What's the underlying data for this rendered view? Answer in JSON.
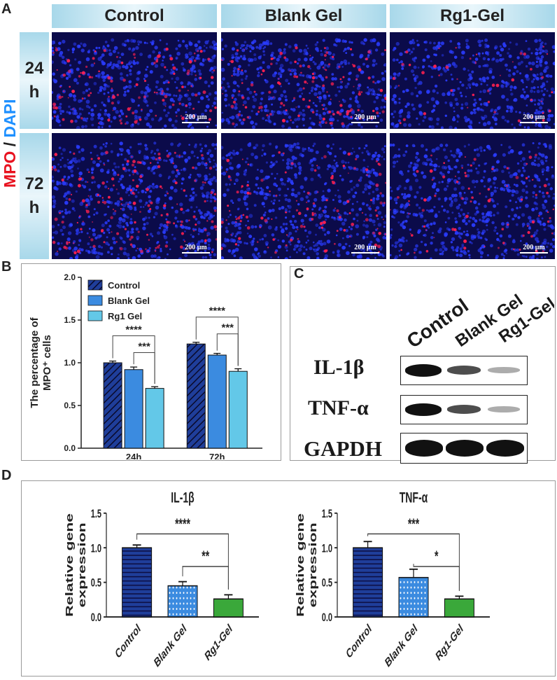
{
  "panel_labels": {
    "a": "A",
    "b": "B",
    "c": "C",
    "d": "D"
  },
  "panel_a": {
    "columns": [
      "Control",
      "Blank Gel",
      "Rg1-Gel"
    ],
    "rows": [
      {
        "line1": "24",
        "line2": "h"
      },
      {
        "line1": "72",
        "line2": "h"
      }
    ],
    "stain_label": {
      "mpo": "MPO",
      "sep": " / ",
      "dapi": "DAPI"
    },
    "scale_bar": "200 μm",
    "colors": {
      "dapi": "#2a3cff",
      "mpo": "#ff2050",
      "background": "#0b0b4a"
    }
  },
  "panel_c": {
    "lanes": [
      "Control",
      "Blank Gel",
      "Rg1-Gel"
    ],
    "rows": [
      {
        "label": "IL-1β",
        "intensity": [
          1.0,
          0.6,
          0.3
        ]
      },
      {
        "label": "TNF-α",
        "intensity": [
          1.0,
          0.6,
          0.3
        ]
      },
      {
        "label": "GAPDH",
        "intensity": [
          1.0,
          1.0,
          1.0
        ]
      }
    ]
  },
  "chart_data": [
    {
      "panel": "B",
      "type": "bar",
      "categories": [
        "24h",
        "72h"
      ],
      "series": [
        {
          "name": "Control",
          "values": [
            1.0,
            1.22
          ],
          "errors": [
            0.02,
            0.02
          ],
          "color": "#1f3e9a",
          "pattern": "diagonal-hatch"
        },
        {
          "name": "Blank Gel",
          "values": [
            0.92,
            1.09
          ],
          "errors": [
            0.03,
            0.02
          ],
          "color": "#3b8be0",
          "pattern": "solid"
        },
        {
          "name": "Rg1 Gel",
          "values": [
            0.7,
            0.9
          ],
          "errors": [
            0.02,
            0.03
          ],
          "color": "#63c8e8",
          "pattern": "solid"
        }
      ],
      "ylabel_line1": "The percentage of",
      "ylabel_line2": "MPO⁺ cells",
      "ylim": [
        0,
        2.0
      ],
      "yticks": [
        "0.0",
        "0.5",
        "1.0",
        "1.5",
        "2.0"
      ],
      "legend_position": "top-left",
      "significance": [
        {
          "group": "24h",
          "from": "Control",
          "to": "Rg1 Gel",
          "label": "****"
        },
        {
          "group": "24h",
          "from": "Blank Gel",
          "to": "Rg1 Gel",
          "label": "***"
        },
        {
          "group": "72h",
          "from": "Control",
          "to": "Rg1 Gel",
          "label": "****"
        },
        {
          "group": "72h",
          "from": "Blank Gel",
          "to": "Rg1 Gel",
          "label": "***"
        }
      ]
    },
    {
      "panel": "D-left",
      "type": "bar",
      "title": "IL-1β",
      "categories": [
        "Control",
        "Blank Gel",
        "Rg1-Gel"
      ],
      "values": [
        1.0,
        0.45,
        0.26
      ],
      "errors": [
        0.04,
        0.06,
        0.06
      ],
      "colors": [
        "#1f3e9a",
        "#3b8be0",
        "#3aa83a"
      ],
      "patterns": [
        "horizontal-lines",
        "dots",
        "solid"
      ],
      "ylabel_line1": "Relative gene",
      "ylabel_line2": "expression",
      "ylim": [
        0,
        1.5
      ],
      "yticks": [
        "0.0",
        "0.5",
        "1.0",
        "1.5"
      ],
      "significance": [
        {
          "from": "Control",
          "to": "Rg1-Gel",
          "label": "****"
        },
        {
          "from": "Blank Gel",
          "to": "Rg1-Gel",
          "label": "**"
        }
      ]
    },
    {
      "panel": "D-right",
      "type": "bar",
      "title": "TNF-α",
      "categories": [
        "Control",
        "Blank Gel",
        "Rg1-Gel"
      ],
      "values": [
        1.0,
        0.57,
        0.26
      ],
      "errors": [
        0.09,
        0.12,
        0.04
      ],
      "colors": [
        "#1f3e9a",
        "#3b8be0",
        "#3aa83a"
      ],
      "patterns": [
        "horizontal-lines",
        "dots",
        "solid"
      ],
      "ylabel_line1": "Relative gene",
      "ylabel_line2": "expression",
      "ylim": [
        0,
        1.5
      ],
      "yticks": [
        "0.0",
        "0.5",
        "1.0",
        "1.5"
      ],
      "significance": [
        {
          "from": "Control",
          "to": "Rg1-Gel",
          "label": "***"
        },
        {
          "from": "Blank Gel",
          "to": "Rg1-Gel",
          "label": "*"
        }
      ]
    }
  ]
}
